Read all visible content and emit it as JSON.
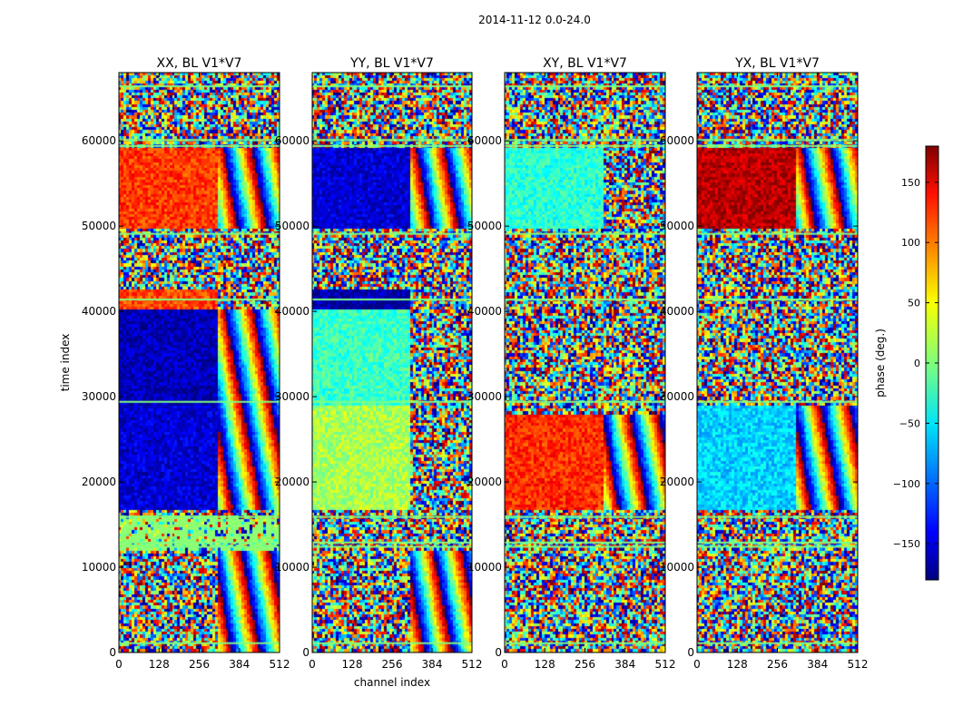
{
  "figure_title": "2014-11-12 0.0-24.0",
  "colorbar": {
    "label": "phase (deg.)",
    "range": [
      -180,
      180
    ],
    "ticks": [
      150,
      100,
      50,
      0,
      -50,
      -100,
      -150
    ],
    "tick_labels": [
      "150",
      "100",
      "50",
      "0",
      "−50",
      "−100",
      "−150"
    ],
    "colormap": "jet"
  },
  "chart_data": [
    {
      "type": "heatmap",
      "title": "XX, BL V1*V7",
      "xlabel": "",
      "ylabel": "time index",
      "xlim": [
        0,
        512
      ],
      "ylim": [
        0,
        68000
      ],
      "xticks": [
        0,
        128,
        256,
        384,
        512
      ],
      "yticks": [
        0,
        10000,
        20000,
        30000,
        40000,
        50000,
        60000
      ],
      "z_label": "phase (deg.)",
      "regions": [
        {
          "x": [
            0,
            320
          ],
          "y": [
            0,
            12000
          ],
          "phase": "noise"
        },
        {
          "x": [
            320,
            512
          ],
          "y": [
            0,
            12000
          ],
          "phase": "fringes"
        },
        {
          "x": [
            0,
            512
          ],
          "y": [
            12000,
            16000
          ],
          "phase": "flagged-bands"
        },
        {
          "x": [
            0,
            320
          ],
          "y": [
            16500,
            29000
          ],
          "phase": -150
        },
        {
          "x": [
            320,
            512
          ],
          "y": [
            16500,
            29000
          ],
          "phase": "fringes"
        },
        {
          "x": [
            0,
            320
          ],
          "y": [
            29000,
            40000
          ],
          "phase": -160
        },
        {
          "x": [
            320,
            512
          ],
          "y": [
            29000,
            40000
          ],
          "phase": "fringes"
        },
        {
          "x": [
            0,
            320
          ],
          "y": [
            40000,
            42500
          ],
          "phase": 110
        },
        {
          "x": [
            0,
            512
          ],
          "y": [
            42500,
            49500
          ],
          "phase": "noise"
        },
        {
          "x": [
            0,
            320
          ],
          "y": [
            49500,
            59000
          ],
          "phase": 115
        },
        {
          "x": [
            320,
            512
          ],
          "y": [
            49500,
            59000
          ],
          "phase": "fringes"
        },
        {
          "x": [
            0,
            512
          ],
          "y": [
            59000,
            68000
          ],
          "phase": "noise"
        }
      ]
    },
    {
      "type": "heatmap",
      "title": "YY, BL V1*V7",
      "xlabel": "channel index",
      "ylabel": "",
      "xlim": [
        0,
        512
      ],
      "ylim": [
        0,
        68000
      ],
      "xticks": [
        0,
        128,
        256,
        384,
        512
      ],
      "yticks": [
        0,
        10000,
        20000,
        30000,
        40000,
        50000,
        60000
      ],
      "z_label": "phase (deg.)",
      "regions": [
        {
          "x": [
            0,
            320
          ],
          "y": [
            0,
            12000
          ],
          "phase": "noise"
        },
        {
          "x": [
            320,
            512
          ],
          "y": [
            0,
            12000
          ],
          "phase": "fringes"
        },
        {
          "x": [
            0,
            320
          ],
          "y": [
            16500,
            29000
          ],
          "phase": 15
        },
        {
          "x": [
            0,
            320
          ],
          "y": [
            29000,
            40000
          ],
          "phase": -25
        },
        {
          "x": [
            0,
            320
          ],
          "y": [
            40000,
            42500
          ],
          "phase": -165
        },
        {
          "x": [
            0,
            512
          ],
          "y": [
            42500,
            49500
          ],
          "phase": "noise"
        },
        {
          "x": [
            0,
            320
          ],
          "y": [
            49500,
            59000
          ],
          "phase": -150
        },
        {
          "x": [
            320,
            512
          ],
          "y": [
            49500,
            59000
          ],
          "phase": "fringes"
        },
        {
          "x": [
            0,
            512
          ],
          "y": [
            59000,
            68000
          ],
          "phase": "noise"
        }
      ]
    },
    {
      "type": "heatmap",
      "title": "XY, BL V1*V7",
      "xlabel": "",
      "ylabel": "",
      "xlim": [
        0,
        512
      ],
      "ylim": [
        0,
        68000
      ],
      "xticks": [
        0,
        128,
        256,
        384,
        512
      ],
      "yticks": [
        0,
        10000,
        20000,
        30000,
        40000,
        50000,
        60000
      ],
      "z_label": "phase (deg.)",
      "regions": [
        {
          "x": [
            0,
            512
          ],
          "y": [
            0,
            16000
          ],
          "phase": "noise"
        },
        {
          "x": [
            0,
            320
          ],
          "y": [
            16500,
            28000
          ],
          "phase": 120
        },
        {
          "x": [
            320,
            512
          ],
          "y": [
            16500,
            28000
          ],
          "phase": "fringes"
        },
        {
          "x": [
            0,
            512
          ],
          "y": [
            28000,
            49500
          ],
          "phase": "noise"
        },
        {
          "x": [
            0,
            320
          ],
          "y": [
            49500,
            59000
          ],
          "phase": -30
        },
        {
          "x": [
            0,
            512
          ],
          "y": [
            59000,
            68000
          ],
          "phase": "noise"
        }
      ]
    },
    {
      "type": "heatmap",
      "title": "YX, BL V1*V7",
      "xlabel": "",
      "ylabel": "",
      "xlim": [
        0,
        512
      ],
      "ylim": [
        0,
        68000
      ],
      "xticks": [
        0,
        128,
        256,
        384,
        512
      ],
      "yticks": [
        0,
        10000,
        20000,
        30000,
        40000,
        50000,
        60000
      ],
      "z_label": "phase (deg.)",
      "regions": [
        {
          "x": [
            0,
            512
          ],
          "y": [
            0,
            16000
          ],
          "phase": "noise"
        },
        {
          "x": [
            0,
            320
          ],
          "y": [
            16500,
            29000
          ],
          "phase": -60
        },
        {
          "x": [
            320,
            512
          ],
          "y": [
            16500,
            29000
          ],
          "phase": "fringes"
        },
        {
          "x": [
            0,
            512
          ],
          "y": [
            29000,
            49500
          ],
          "phase": "noise"
        },
        {
          "x": [
            0,
            320
          ],
          "y": [
            49500,
            59000
          ],
          "phase": 160
        },
        {
          "x": [
            320,
            512
          ],
          "y": [
            49500,
            59000
          ],
          "phase": "fringes"
        },
        {
          "x": [
            0,
            512
          ],
          "y": [
            59000,
            68000
          ],
          "phase": "noise"
        }
      ]
    }
  ]
}
